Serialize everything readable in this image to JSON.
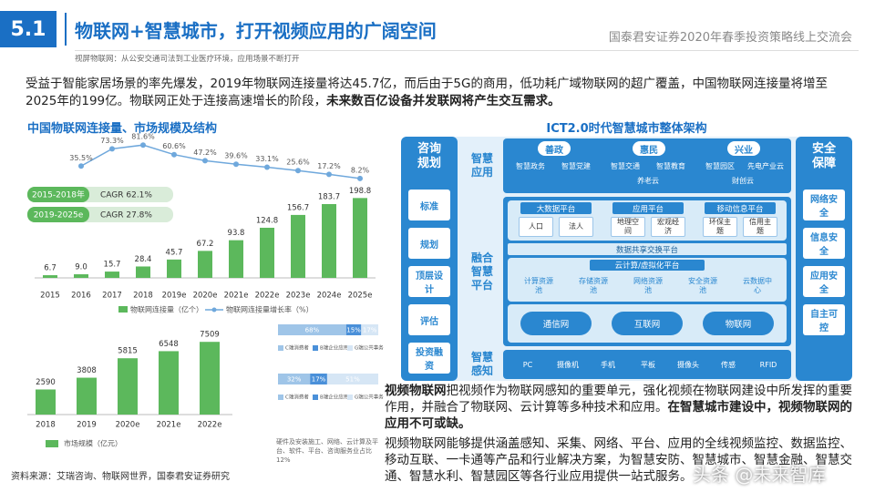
{
  "header": {
    "section": "5.1",
    "title": "物联网+智慧城市，打开视频应用的广阔空间",
    "event": "国泰君安证券2020年春季投资策略线上交流会",
    "subtitle": "视屏物联网：从公安交通司法到工业医疗环境，应用场景不断打开"
  },
  "intro": [
    {
      "text": "受益于智能家居场景的率先爆发，2019年物联网连接量将达45.7亿，而后由于5G的商用，低功耗广域物联网的超广覆盖，中国物联网连接量将增至2025年的199亿。物联网正处于连接高速增长的阶段，",
      "bold": false
    },
    {
      "text": "未来数百亿设备并发联网将产生交互需求。",
      "bold": true
    }
  ],
  "left_title": "中国物联网连接量、市场规模及结构",
  "chart_data": [
    {
      "type": "combo",
      "categories": [
        "2015",
        "2016",
        "2017",
        "2018",
        "2019e",
        "2020e",
        "2021e",
        "2022e",
        "2023e",
        "2024e",
        "2025e"
      ],
      "series": [
        {
          "name": "物联网连接量（亿个）",
          "color": "#5cb85c",
          "values": [
            6.7,
            9.0,
            15.7,
            28.4,
            45.7,
            67.2,
            93.8,
            124.8,
            156.7,
            183.7,
            198.8
          ],
          "value_labels": [
            "6.7",
            "9.0",
            "15.7",
            "28.4",
            "45.7",
            "67.2",
            "93.8",
            "124.8",
            "156.7",
            "183.7",
            "198.8"
          ]
        },
        {
          "name": "物联网连接量增长率（%）",
          "color": "#6fa8dc",
          "axis": "y2",
          "values": [
            null,
            35.5,
            73.3,
            81.6,
            60.6,
            47.2,
            39.6,
            33.1,
            25.6,
            17.2,
            8.2
          ],
          "value_labels": [
            null,
            "35.5%",
            "73.3%",
            "81.6%",
            "60.6%",
            "47.2%",
            "39.6%",
            "33.1%",
            "25.6%",
            "17.2%",
            "8.2%"
          ]
        }
      ],
      "ylim": [
        0,
        220
      ],
      "y2lim": [
        0,
        100
      ],
      "annotations": [
        {
          "period": "2015-2018年",
          "text": "CAGR 62.1%"
        },
        {
          "period": "2019-2025e",
          "text": "CAGR 27.8%"
        }
      ]
    },
    {
      "type": "bar",
      "categories": [
        "2018",
        "2019",
        "2020e",
        "2021e",
        "2022e"
      ],
      "series": [
        {
          "name": "市场规模（亿元）",
          "color": "#5cb85c",
          "values": [
            2590,
            3808,
            5815,
            6548,
            7509
          ]
        }
      ],
      "ylim": [
        0,
        8000
      ]
    },
    {
      "type": "stacked_hbar",
      "series": [
        {
          "name": "C端消费者",
          "color": "#9fc5e8",
          "values": [
            68,
            32
          ],
          "value_labels": [
            "68%",
            "32%"
          ]
        },
        {
          "name": "B端企业应用",
          "color": "#4a90d9",
          "values": [
            15,
            17
          ],
          "value_labels": [
            "15%",
            "17%"
          ]
        },
        {
          "name": "G端公共事务",
          "color": "#d6e6f5",
          "values": [
            17,
            51
          ],
          "value_labels": [
            "17%",
            "51%"
          ]
        }
      ],
      "xlim": [
        0,
        100
      ],
      "note": "硬件及安装施工、网络、云计算及平台、软件、平台、咨询服务业占比12%"
    }
  ],
  "right_title": "ICT2.0时代智慧城市整体架构",
  "diagram": {
    "left": {
      "title": "咨询规划",
      "items": [
        "标准",
        "规划",
        "顶层设计",
        "评估",
        "投资融资"
      ]
    },
    "right": {
      "title": "安全保障",
      "items": [
        "网络安全",
        "信息安全",
        "应用安全",
        "自主可控"
      ]
    },
    "apps": {
      "title": "智慧应用",
      "groups": [
        {
          "name": "善政",
          "items": [
            "智慧政务",
            "智慧党建"
          ]
        },
        {
          "name": "惠民",
          "items": [
            "智慧交通",
            "智慧教育",
            "养老云"
          ]
        },
        {
          "name": "兴业",
          "items": [
            "智慧园区",
            "先电产业云",
            "财创云"
          ]
        }
      ]
    },
    "platform": {
      "title": "融合智慧平台",
      "data_platforms": [
        {
          "name": "大数据平台",
          "items": [
            "人口",
            "法人"
          ]
        },
        {
          "name": "应用平台",
          "items": [
            "地理空间",
            "宏观经济"
          ]
        },
        {
          "name": "移动信息平台",
          "items": [
            "环保主题",
            "信用主题"
          ]
        }
      ],
      "exchange": "数据共享交换平台",
      "cloud": {
        "name": "云计算/虚拟化平台",
        "items": [
          "计算资源池",
          "存储资源池",
          "网络资源池",
          "安全资源池",
          "云数据中心"
        ]
      },
      "networks": [
        "通信网",
        "互联网",
        "物联网"
      ]
    },
    "sensing": {
      "title": "智慧感知",
      "items": [
        "PC",
        "摄像机",
        "手机",
        "平板",
        "摄像头",
        "传感",
        "RFID"
      ]
    }
  },
  "right_text": [
    [
      {
        "text": "视频物联网",
        "bold": true
      },
      {
        "text": "把视频作为物联网感知的重要单元，强化视频在物联网建设中所发挥的重要作用，并融合了物联网、云计算等多种技术和应用。",
        "bold": false
      },
      {
        "text": "在智慧城市建设中，视频物联网的应用不可或缺。",
        "bold": true
      }
    ],
    [
      {
        "text": "视频物联网能够提供涵盖感知、采集、网络、平台、应用的全线视频监控、数据监控、移动互联、一卡通等产品和行业解决方案，为智慧安防、智慧城市、智慧金融、智慧交通、智慧水利、智慧园区等各行业应用提供一站式服务。",
        "bold": false
      }
    ]
  ],
  "source": "资料来源：艾瑞咨询、物联网世界，国泰君安证券研究",
  "watermark": "头条 @未来智库"
}
